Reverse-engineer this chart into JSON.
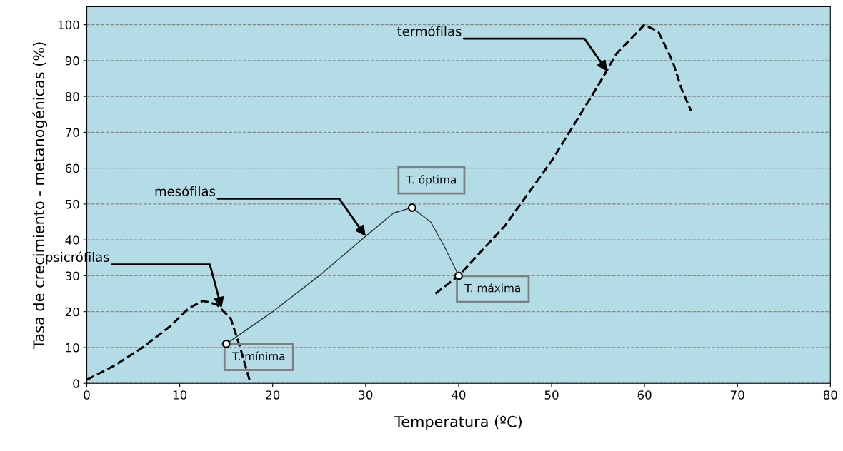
{
  "chart_data": {
    "type": "line",
    "xlabel": "Temperatura (ºC)",
    "ylabel": "Tasa de crecimiento - metanogénicas (%)",
    "xlim": [
      0,
      80
    ],
    "ylim": [
      0,
      105
    ],
    "xticks": [
      0,
      10,
      20,
      30,
      40,
      50,
      60,
      70,
      80
    ],
    "yticks": [
      0,
      10,
      20,
      30,
      40,
      50,
      60,
      70,
      80,
      90,
      100
    ],
    "grid": "y",
    "series": [
      {
        "color": "#000000",
        "line_style": "dashed",
        "marker": "none",
        "x": [
          0,
          3,
          6,
          9,
          11,
          12.5,
          14,
          15.5,
          16.5,
          17.5
        ],
        "values": [
          1,
          5,
          10,
          16,
          21,
          23,
          22,
          18,
          10,
          1
        ]
      },
      {
        "color": "#333333",
        "line_style": "solid",
        "marker": "none",
        "x": [
          15,
          20,
          25,
          30,
          33,
          35,
          37,
          38.5,
          40
        ],
        "values": [
          11,
          20,
          30,
          41,
          47.5,
          49,
          45,
          38,
          30
        ]
      },
      {
        "color": "#000000",
        "line_style": "dashed",
        "marker": "none",
        "x": [
          37.5,
          40,
          45,
          50,
          55,
          57,
          60,
          61.5,
          63,
          64,
          65
        ],
        "values": [
          25,
          30,
          44,
          62,
          83,
          92,
          100,
          98,
          90,
          82,
          76
        ]
      },
      {
        "type": "scatter",
        "color": "#ffffff",
        "marker": "circle",
        "x": [
          15,
          35,
          40
        ],
        "values": [
          11,
          49,
          30
        ]
      }
    ],
    "annotations": [
      {
        "text": "psicrófilas",
        "x": 14.5,
        "y": 21
      },
      {
        "text": "mesófilas",
        "x": 30,
        "y": 41
      },
      {
        "text": "termófilas",
        "x": 56,
        "y": 87
      },
      {
        "text": "T. mínima",
        "x": 15,
        "y": 11
      },
      {
        "text": "T. óptima",
        "x": 35,
        "y": 49
      },
      {
        "text": "T. máxima",
        "x": 40,
        "y": 30
      }
    ]
  }
}
